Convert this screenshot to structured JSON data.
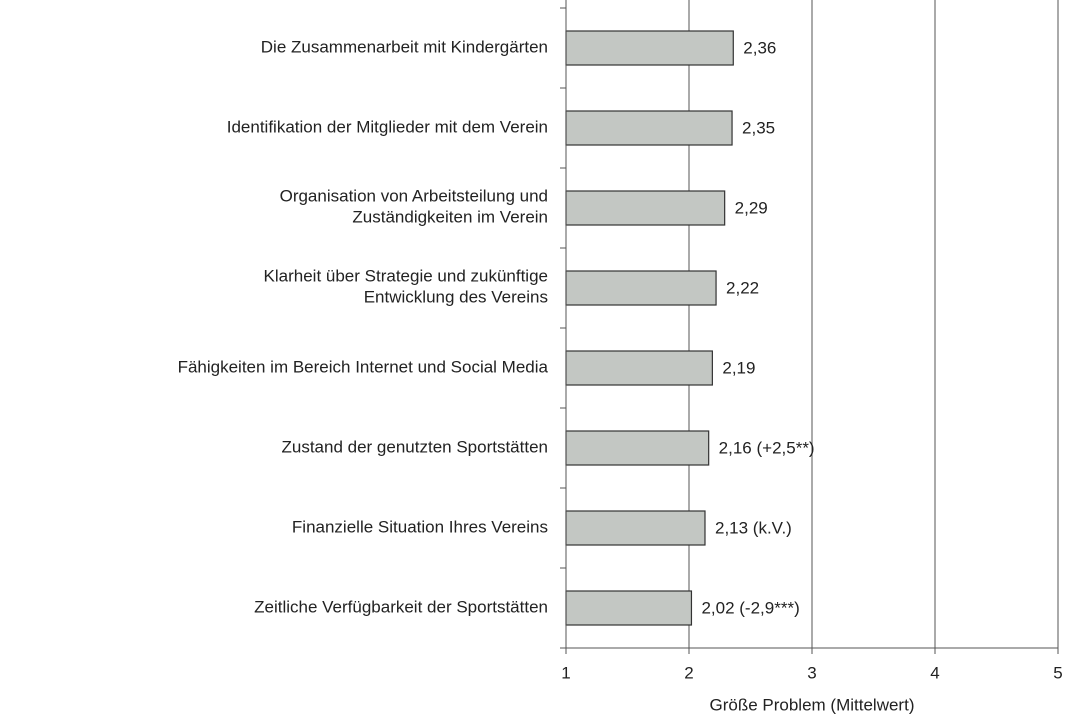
{
  "chart_data": {
    "type": "bar",
    "orientation": "horizontal",
    "x_label": "Größe Problem (Mittelwert)",
    "categories": [
      "Die Zusammenarbeit mit Kindergärten",
      "Identifikation der Mitglieder mit dem Verein",
      "Organisation von Arbeitsteilung und\nZuständigkeiten im Verein",
      "Klarheit über Strategie und zukünftige\nEntwicklung des Vereins",
      "Fähigkeiten im Bereich Internet und Social Media",
      "Zustand der genutzten Sportstätten",
      "Finanzielle Situation Ihres Vereins",
      "Zeitliche Verfügbarkeit der Sportstätten"
    ],
    "values": [
      2.36,
      2.35,
      2.29,
      2.22,
      2.19,
      2.16,
      2.13,
      2.02
    ],
    "value_labels": [
      "2,36",
      "2,35",
      "2,29",
      "2,22",
      "2,19",
      "2,16 (+2,5**)",
      "2,13 (k.V.)",
      "2,02 (-2,9***)"
    ],
    "color": "#c3c7c3",
    "xlim": [
      1,
      5
    ],
    "xticks": [
      1,
      2,
      3,
      4,
      5
    ],
    "grid": true
  }
}
